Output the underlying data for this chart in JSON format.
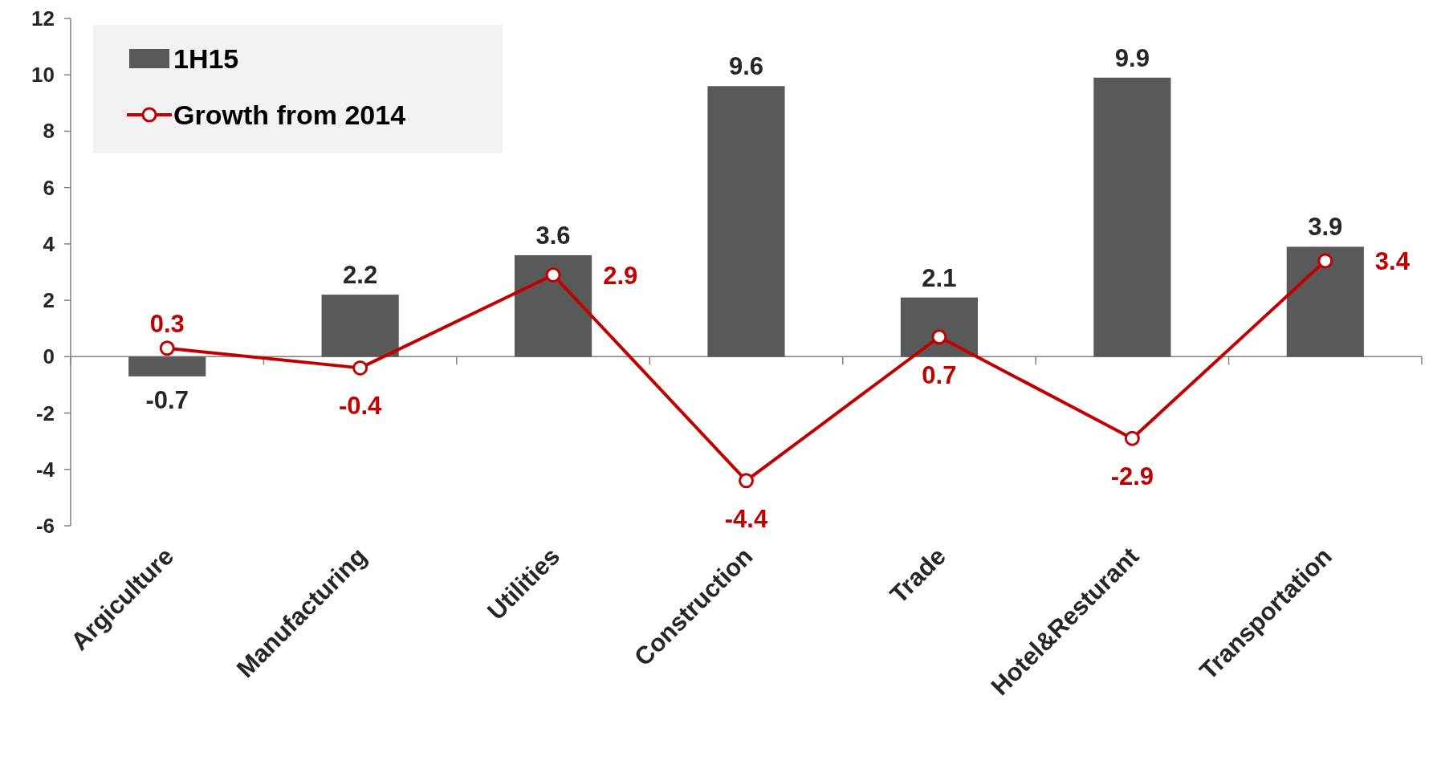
{
  "chart_data": {
    "type": "bar",
    "categories": [
      "Argiculture",
      "Manufacturing",
      "Utilities",
      "Construction",
      "Trade",
      "Hotel&Resturant",
      "Transportation"
    ],
    "series": [
      {
        "name": "1H15",
        "color": "#595959",
        "values": [
          -0.7,
          2.2,
          3.6,
          9.6,
          2.1,
          9.9,
          3.9
        ]
      },
      {
        "name": "Growth from 2014",
        "type": "line",
        "color": "#c00000",
        "values": [
          0.3,
          -0.4,
          2.9,
          -4.4,
          0.7,
          -2.9,
          3.4
        ]
      }
    ],
    "ylim": [
      -6,
      12
    ],
    "yticks": [
      -6,
      -4,
      -2,
      0,
      2,
      4,
      6,
      8,
      10,
      12
    ],
    "data_labels": true,
    "legend": "top left",
    "marker": "circle"
  }
}
